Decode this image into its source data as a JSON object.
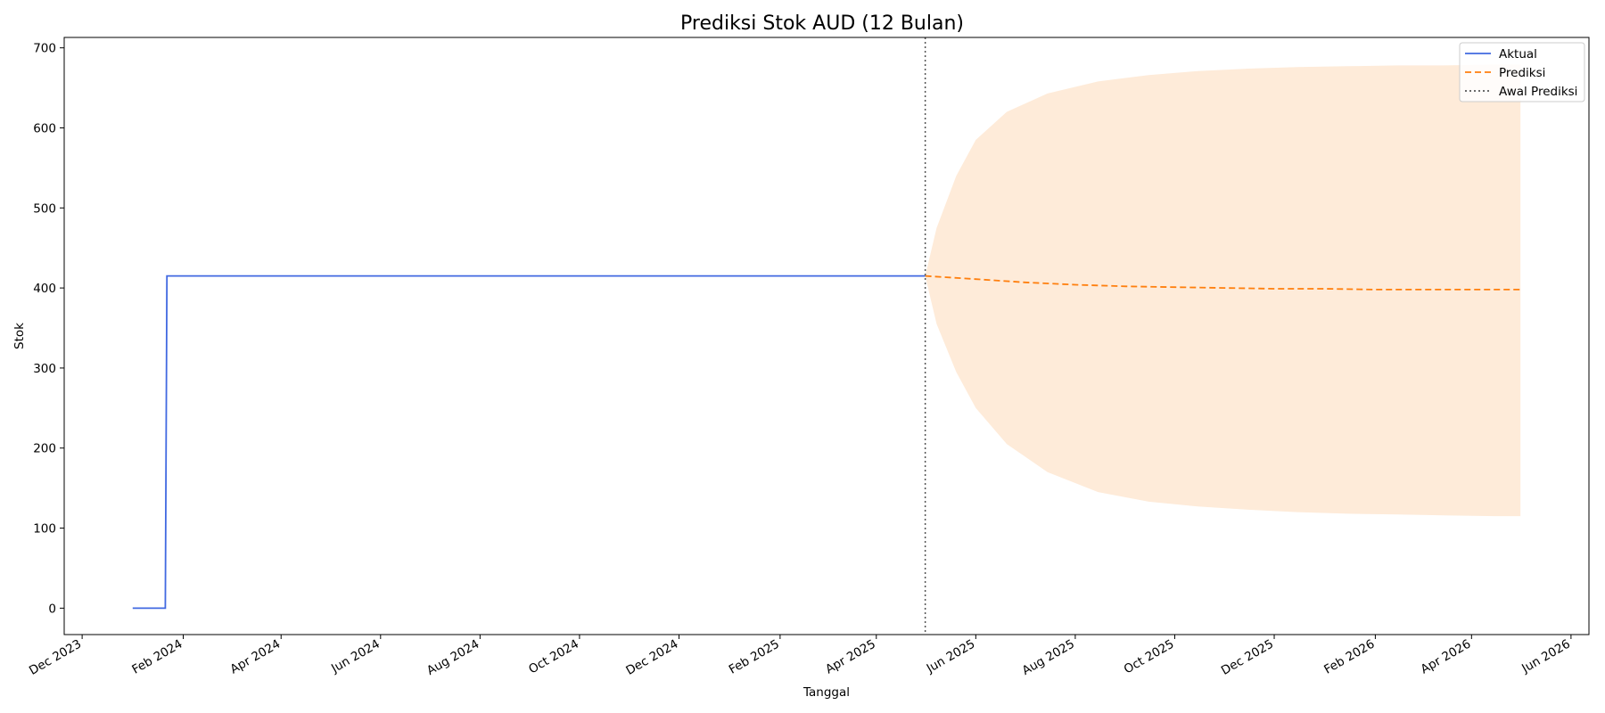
{
  "chart_data": {
    "type": "line",
    "title": "Prediksi Stok AUD (12 Bulan)",
    "xlabel": "Tanggal",
    "ylabel": "Stok",
    "x_range": [
      "2023-11-20",
      "2026-06-12"
    ],
    "ylim": [
      -33,
      713
    ],
    "y_ticks": [
      0,
      100,
      200,
      300,
      400,
      500,
      600,
      700
    ],
    "x_ticks": [
      {
        "date": "2023-12-01",
        "label": "Dec 2023"
      },
      {
        "date": "2024-02-01",
        "label": "Feb 2024"
      },
      {
        "date": "2024-04-01",
        "label": "Apr 2024"
      },
      {
        "date": "2024-06-01",
        "label": "Jun 2024"
      },
      {
        "date": "2024-08-01",
        "label": "Aug 2024"
      },
      {
        "date": "2024-10-01",
        "label": "Oct 2024"
      },
      {
        "date": "2024-12-01",
        "label": "Dec 2024"
      },
      {
        "date": "2025-02-01",
        "label": "Feb 2025"
      },
      {
        "date": "2025-04-01",
        "label": "Apr 2025"
      },
      {
        "date": "2025-06-01",
        "label": "Jun 2025"
      },
      {
        "date": "2025-08-01",
        "label": "Aug 2025"
      },
      {
        "date": "2025-10-01",
        "label": "Oct 2025"
      },
      {
        "date": "2025-12-01",
        "label": "Dec 2025"
      },
      {
        "date": "2026-02-01",
        "label": "Feb 2026"
      },
      {
        "date": "2026-04-01",
        "label": "Apr 2026"
      },
      {
        "date": "2026-06-01",
        "label": "Jun 2026"
      }
    ],
    "grid": false,
    "legend_position": "top-right",
    "series": [
      {
        "name": "Aktual",
        "style": "solid",
        "color": "#4169E1",
        "points": [
          [
            "2024-01-01",
            0
          ],
          [
            "2024-01-21",
            0
          ],
          [
            "2024-01-22",
            415
          ],
          [
            "2025-05-01",
            415
          ]
        ]
      },
      {
        "name": "Prediksi",
        "style": "dashed",
        "color": "#FF7F0E",
        "points": [
          [
            "2025-05-01",
            415
          ],
          [
            "2025-06-01",
            411
          ],
          [
            "2025-07-01",
            407
          ],
          [
            "2025-08-01",
            404
          ],
          [
            "2025-09-01",
            402
          ],
          [
            "2025-10-01",
            401
          ],
          [
            "2025-11-01",
            400
          ],
          [
            "2025-12-01",
            399
          ],
          [
            "2026-01-01",
            399
          ],
          [
            "2026-02-01",
            398
          ],
          [
            "2026-03-01",
            398
          ],
          [
            "2026-04-01",
            398
          ],
          [
            "2026-05-01",
            398
          ]
        ]
      }
    ],
    "confidence_band": {
      "color": "#FEEBD9",
      "points": [
        [
          "2025-05-01",
          415,
          415
        ],
        [
          "2025-05-08",
          355,
          475
        ],
        [
          "2025-05-20",
          295,
          540
        ],
        [
          "2025-06-01",
          250,
          585
        ],
        [
          "2025-06-20",
          205,
          620
        ],
        [
          "2025-07-15",
          170,
          643
        ],
        [
          "2025-08-15",
          145,
          658
        ],
        [
          "2025-09-15",
          133,
          666
        ],
        [
          "2025-10-15",
          127,
          671
        ],
        [
          "2025-11-15",
          123,
          674
        ],
        [
          "2025-12-15",
          120,
          676
        ],
        [
          "2026-01-15",
          118,
          677
        ],
        [
          "2026-02-15",
          117,
          678
        ],
        [
          "2026-03-15",
          116,
          678
        ],
        [
          "2026-04-15",
          115,
          679
        ],
        [
          "2026-05-01",
          115,
          679
        ]
      ]
    },
    "reference_line": {
      "name": "Awal Prediksi",
      "date": "2025-05-01",
      "style": "dotted",
      "color": "#555555"
    }
  }
}
